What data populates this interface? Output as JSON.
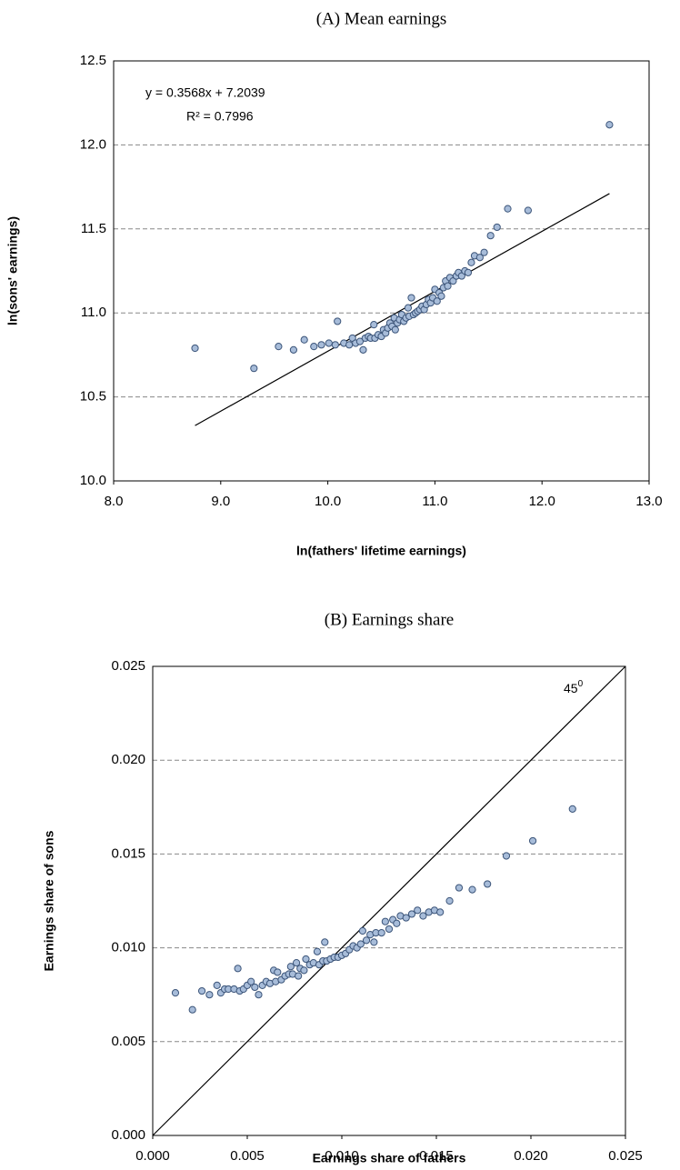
{
  "chart_data": [
    {
      "type": "scatter",
      "title": "(A) Mean earnings",
      "x_label": "ln(fathers' lifetime earnings)",
      "y_label": "ln(sons' earnings)",
      "xlim": [
        8,
        13
      ],
      "ylim": [
        10,
        12.5
      ],
      "xticks": [
        {
          "value": 8,
          "label": "8.0"
        },
        {
          "value": 9,
          "label": "9.0"
        },
        {
          "value": 10,
          "label": "10.0"
        },
        {
          "value": 11,
          "label": "11.0"
        },
        {
          "value": 12,
          "label": "12.0"
        },
        {
          "value": 13,
          "label": "13.0"
        }
      ],
      "yticks": [
        {
          "value": 10,
          "label": "10.0"
        },
        {
          "value": 10.5,
          "label": "10.5"
        },
        {
          "value": 11,
          "label": "11.0"
        },
        {
          "value": 11.5,
          "label": "11.5"
        },
        {
          "value": 12,
          "label": "12.0"
        },
        {
          "value": 12.5,
          "label": "12.5"
        }
      ],
      "grid": true,
      "color": "#a7bcd9",
      "trendline": {
        "label": "y = 0.3568x + 7.2039",
        "slope": 0.3568,
        "intercept": 7.2039,
        "r2_label": "R² = 0.7996",
        "r2": 0.7996
      },
      "x": [
        8.76,
        9.31,
        9.54,
        9.68,
        9.78,
        9.87,
        9.94,
        10.01,
        10.07,
        10.09,
        10.15,
        10.2,
        10.23,
        10.26,
        10.3,
        10.33,
        10.35,
        10.38,
        10.4,
        10.43,
        10.44,
        10.47,
        10.5,
        10.52,
        10.54,
        10.56,
        10.58,
        10.6,
        10.62,
        10.63,
        10.65,
        10.67,
        10.69,
        10.71,
        10.73,
        10.75,
        10.76,
        10.78,
        10.8,
        10.82,
        10.84,
        10.86,
        10.88,
        10.9,
        10.92,
        10.94,
        10.96,
        10.98,
        11.0,
        11.02,
        11.04,
        11.06,
        11.08,
        11.1,
        11.12,
        11.14,
        11.17,
        11.2,
        11.22,
        11.25,
        11.28,
        11.31,
        11.34,
        11.37,
        11.42,
        11.46,
        11.52,
        11.58,
        11.68,
        11.87,
        12.63
      ],
      "values": [
        10.79,
        10.67,
        10.8,
        10.78,
        10.84,
        10.8,
        10.81,
        10.82,
        10.81,
        10.95,
        10.82,
        10.81,
        10.85,
        10.82,
        10.83,
        10.78,
        10.85,
        10.86,
        10.85,
        10.93,
        10.85,
        10.87,
        10.86,
        10.9,
        10.88,
        10.91,
        10.94,
        10.92,
        10.97,
        10.9,
        10.94,
        10.96,
        10.99,
        10.95,
        10.97,
        11.03,
        10.98,
        11.09,
        10.99,
        11.0,
        11.01,
        11.02,
        11.04,
        11.02,
        11.05,
        11.08,
        11.06,
        11.09,
        11.14,
        11.07,
        11.12,
        11.1,
        11.15,
        11.19,
        11.16,
        11.21,
        11.19,
        11.22,
        11.24,
        11.22,
        11.25,
        11.24,
        11.3,
        11.34,
        11.33,
        11.36,
        11.46,
        11.51,
        11.62,
        11.61,
        12.12
      ]
    },
    {
      "type": "scatter",
      "title": "(B) Earnings share",
      "x_label": "Earnings share of fathers",
      "y_label": "Earnings share of sons",
      "xlim": [
        0,
        0.025
      ],
      "ylim": [
        0,
        0.025
      ],
      "xticks": [
        {
          "value": 0,
          "label": "0.000"
        },
        {
          "value": 0.005,
          "label": "0.005"
        },
        {
          "value": 0.01,
          "label": "0.010"
        },
        {
          "value": 0.015,
          "label": "0.015"
        },
        {
          "value": 0.02,
          "label": "0.020"
        },
        {
          "value": 0.025,
          "label": "0.025"
        }
      ],
      "yticks": [
        {
          "value": 0,
          "label": "0.000"
        },
        {
          "value": 0.005,
          "label": "0.005"
        },
        {
          "value": 0.01,
          "label": "0.010"
        },
        {
          "value": 0.015,
          "label": "0.015"
        },
        {
          "value": 0.02,
          "label": "0.020"
        },
        {
          "value": 0.025,
          "label": "0.025"
        }
      ],
      "grid": true,
      "color": "#a7bcd9",
      "diagonal": true,
      "annotation": {
        "text": "45",
        "superscript": "0"
      },
      "x": [
        0.0012,
        0.0021,
        0.0026,
        0.003,
        0.0034,
        0.0036,
        0.0038,
        0.004,
        0.0043,
        0.0045,
        0.0046,
        0.0048,
        0.005,
        0.0052,
        0.0054,
        0.0056,
        0.0058,
        0.006,
        0.0062,
        0.0064,
        0.0065,
        0.0066,
        0.0068,
        0.007,
        0.0072,
        0.0073,
        0.0074,
        0.0076,
        0.0077,
        0.0078,
        0.008,
        0.0081,
        0.0083,
        0.0085,
        0.0087,
        0.0088,
        0.009,
        0.0091,
        0.0092,
        0.0094,
        0.0096,
        0.0098,
        0.01,
        0.0102,
        0.0104,
        0.0106,
        0.0108,
        0.011,
        0.0111,
        0.0113,
        0.0115,
        0.0117,
        0.0118,
        0.0121,
        0.0123,
        0.0125,
        0.0127,
        0.0129,
        0.0131,
        0.0134,
        0.0137,
        0.014,
        0.0143,
        0.0146,
        0.0149,
        0.0152,
        0.0157,
        0.0162,
        0.0169,
        0.0177,
        0.0187,
        0.0201,
        0.0222
      ],
      "values": [
        0.0076,
        0.0067,
        0.0077,
        0.0075,
        0.008,
        0.0076,
        0.0078,
        0.0078,
        0.0078,
        0.0089,
        0.0077,
        0.0078,
        0.008,
        0.0082,
        0.0079,
        0.0075,
        0.008,
        0.0082,
        0.0081,
        0.0088,
        0.0082,
        0.0087,
        0.0083,
        0.0085,
        0.0086,
        0.009,
        0.0086,
        0.0092,
        0.0085,
        0.0089,
        0.0088,
        0.0094,
        0.0091,
        0.0092,
        0.0098,
        0.0091,
        0.0093,
        0.0103,
        0.0093,
        0.0094,
        0.0095,
        0.0095,
        0.0096,
        0.0097,
        0.0099,
        0.0101,
        0.01,
        0.0102,
        0.0109,
        0.0104,
        0.0107,
        0.0103,
        0.0108,
        0.0108,
        0.0114,
        0.011,
        0.0115,
        0.0113,
        0.0117,
        0.0116,
        0.0118,
        0.012,
        0.0117,
        0.0119,
        0.012,
        0.0119,
        0.0125,
        0.0132,
        0.0131,
        0.0134,
        0.0149,
        0.0157,
        0.0174
      ]
    }
  ]
}
